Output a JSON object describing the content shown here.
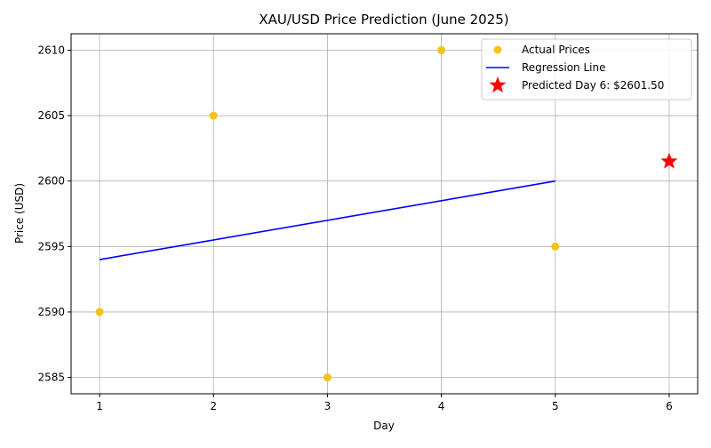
{
  "chart_data": {
    "type": "scatter",
    "title": "XAU/USD Price Prediction (June 2025)",
    "xlabel": "Day",
    "ylabel": "Price (USD)",
    "xlim": [
      0.75,
      6.25
    ],
    "ylim": [
      2583.75,
      2611.25
    ],
    "x_ticks": [
      1,
      2,
      3,
      4,
      5,
      6
    ],
    "y_ticks": [
      2585,
      2590,
      2595,
      2600,
      2605,
      2610
    ],
    "grid": true,
    "legend_position": "top-right",
    "series": [
      {
        "name": "Actual Prices",
        "kind": "scatter",
        "color": "#f0c419",
        "x": [
          1,
          2,
          3,
          4,
          5
        ],
        "y": [
          2590,
          2605,
          2585,
          2610,
          2595
        ]
      },
      {
        "name": "Regression Line",
        "kind": "line",
        "color": "#0000ff",
        "x": [
          1,
          5
        ],
        "y": [
          2594,
          2600
        ]
      },
      {
        "name": "Predicted Day 6: $2601.50",
        "kind": "star",
        "color": "#ff0000",
        "x": [
          6
        ],
        "y": [
          2601.5
        ]
      }
    ]
  }
}
